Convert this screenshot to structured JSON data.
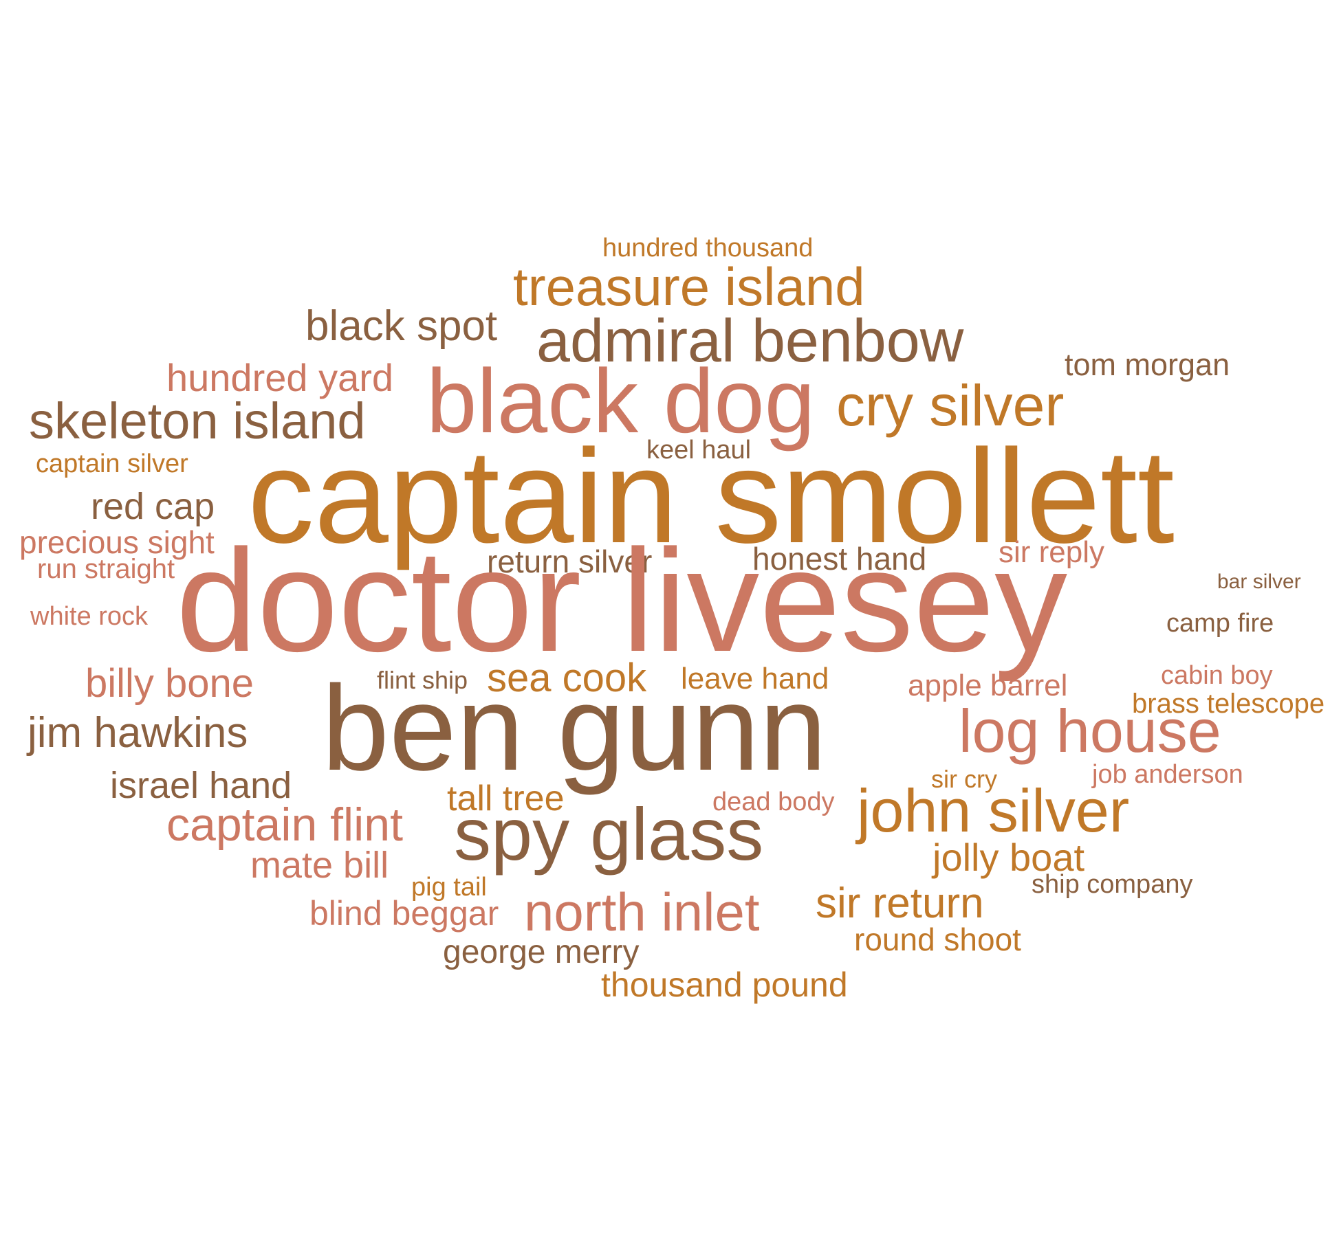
{
  "palette": {
    "brown": "#8a6040",
    "orange": "#c07828",
    "salmon": "#cc7862"
  },
  "words": [
    {
      "text": "hundred thousand",
      "color": "orange"
    },
    {
      "text": "treasure island",
      "color": "orange"
    },
    {
      "text": "black spot",
      "color": "brown"
    },
    {
      "text": "admiral benbow",
      "color": "brown"
    },
    {
      "text": "tom morgan",
      "color": "brown"
    },
    {
      "text": "hundred yard",
      "color": "salmon"
    },
    {
      "text": "black dog",
      "color": "salmon"
    },
    {
      "text": "cry silver",
      "color": "orange"
    },
    {
      "text": "skeleton island",
      "color": "brown"
    },
    {
      "text": "keel haul",
      "color": "brown"
    },
    {
      "text": "captain silver",
      "color": "orange"
    },
    {
      "text": "captain smollett",
      "color": "orange"
    },
    {
      "text": "red cap",
      "color": "brown"
    },
    {
      "text": "precious sight",
      "color": "salmon"
    },
    {
      "text": "run straight",
      "color": "salmon"
    },
    {
      "text": "return silver",
      "color": "brown"
    },
    {
      "text": "honest hand",
      "color": "brown"
    },
    {
      "text": "sir reply",
      "color": "salmon"
    },
    {
      "text": "bar silver",
      "color": "brown"
    },
    {
      "text": "white rock",
      "color": "salmon"
    },
    {
      "text": "doctor livesey",
      "color": "salmon"
    },
    {
      "text": "camp fire",
      "color": "brown"
    },
    {
      "text": "cabin boy",
      "color": "salmon"
    },
    {
      "text": "billy bone",
      "color": "salmon"
    },
    {
      "text": "flint ship",
      "color": "brown"
    },
    {
      "text": "sea cook",
      "color": "orange"
    },
    {
      "text": "leave hand",
      "color": "orange"
    },
    {
      "text": "apple barrel",
      "color": "salmon"
    },
    {
      "text": "brass telescope",
      "color": "orange"
    },
    {
      "text": "jim hawkins",
      "color": "brown"
    },
    {
      "text": "ben gunn",
      "color": "brown"
    },
    {
      "text": "log house",
      "color": "salmon"
    },
    {
      "text": "israel hand",
      "color": "brown"
    },
    {
      "text": "sir cry",
      "color": "orange"
    },
    {
      "text": "job anderson",
      "color": "salmon"
    },
    {
      "text": "tall tree",
      "color": "orange"
    },
    {
      "text": "dead body",
      "color": "salmon"
    },
    {
      "text": "captain flint",
      "color": "salmon"
    },
    {
      "text": "spy glass",
      "color": "brown"
    },
    {
      "text": "john silver",
      "color": "orange"
    },
    {
      "text": "mate bill",
      "color": "salmon"
    },
    {
      "text": "jolly boat",
      "color": "orange"
    },
    {
      "text": "pig tail",
      "color": "orange"
    },
    {
      "text": "ship company",
      "color": "brown"
    },
    {
      "text": "blind beggar",
      "color": "salmon"
    },
    {
      "text": "north inlet",
      "color": "salmon"
    },
    {
      "text": "sir return",
      "color": "orange"
    },
    {
      "text": "round shoot",
      "color": "orange"
    },
    {
      "text": "george merry",
      "color": "brown"
    },
    {
      "text": "thousand pound",
      "color": "orange"
    }
  ]
}
